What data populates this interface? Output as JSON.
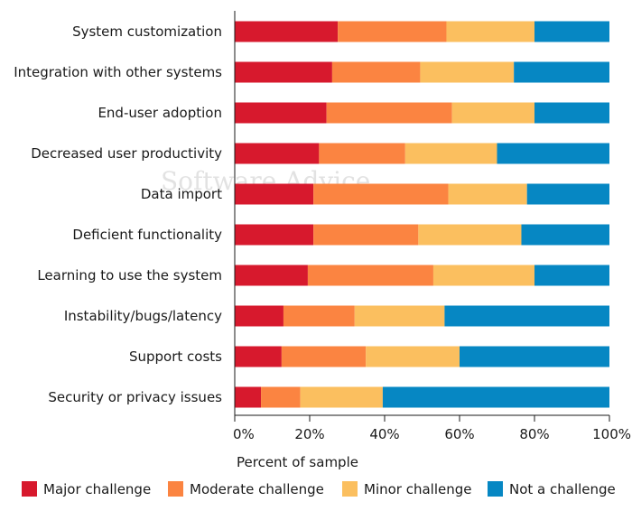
{
  "chart_data": {
    "type": "bar",
    "orientation": "horizontal",
    "stacked": true,
    "categories": [
      "System customization",
      "Integration with other systems",
      "End-user adoption",
      "Decreased user productivity",
      "Data import",
      "Deficient functionality",
      "Learning to use the system",
      "Instability/bugs/latency",
      "Support costs",
      "Security or privacy issues"
    ],
    "series": [
      {
        "name": "Major challenge",
        "color": "#d7192d",
        "values": [
          27.5,
          26,
          24.5,
          22.5,
          21,
          21,
          19.5,
          13,
          12.5,
          7
        ]
      },
      {
        "name": "Moderate challenge",
        "color": "#fb8441",
        "values": [
          29,
          23.5,
          33.5,
          23,
          36,
          28,
          33.5,
          19,
          22.5,
          10.5
        ]
      },
      {
        "name": "Minor challenge",
        "color": "#fbbf5f",
        "values": [
          23.5,
          25,
          22,
          24.5,
          21,
          27.5,
          27,
          24,
          25,
          22
        ]
      },
      {
        "name": "Not a challenge",
        "color": "#0687c3",
        "values": [
          20,
          25.5,
          20,
          30,
          22,
          23.5,
          20,
          44,
          40,
          60.5
        ]
      }
    ],
    "xlabel": "Percent of sample",
    "xlim": [
      0,
      100
    ],
    "xticks": [
      "0%",
      "20%",
      "40%",
      "60%",
      "80%",
      "100%"
    ],
    "legend": "bottom",
    "grid": false
  },
  "watermark": "Software Advice"
}
